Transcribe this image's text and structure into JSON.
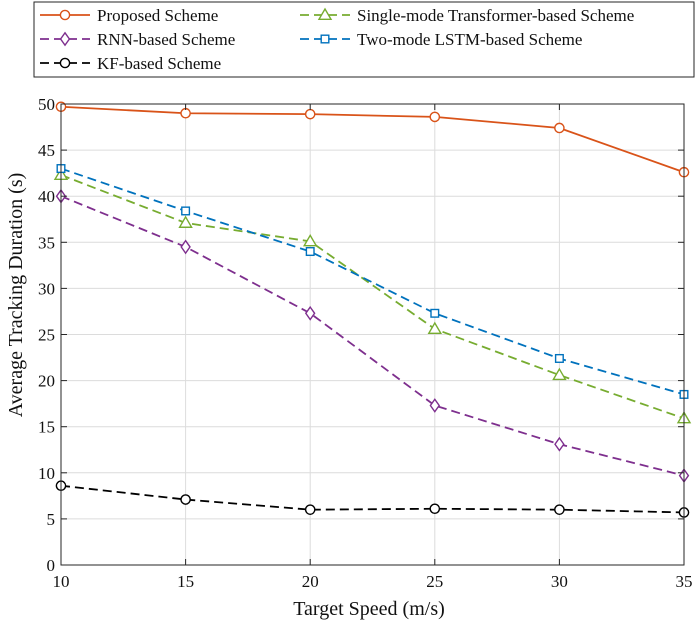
{
  "chart_data": {
    "type": "line",
    "title": "",
    "xlabel": "Target Speed (m/s)",
    "ylabel": "Average Tracking Duration (s)",
    "x": [
      10,
      15,
      20,
      25,
      30,
      35
    ],
    "xlim": [
      10,
      35
    ],
    "ylim": [
      0,
      50
    ],
    "xticks": [
      10,
      15,
      20,
      25,
      30,
      35
    ],
    "yticks": [
      0,
      5,
      10,
      15,
      20,
      25,
      30,
      35,
      40,
      45,
      50
    ],
    "grid": true,
    "legend_position": "top",
    "series": [
      {
        "name": "Proposed Scheme",
        "values": [
          49.7,
          49.0,
          48.9,
          48.6,
          47.4,
          42.6
        ],
        "color": "#D95319",
        "marker": "circle",
        "dash": "solid"
      },
      {
        "name": "Single-mode Transformer-based Scheme",
        "values": [
          42.3,
          37.1,
          35.1,
          25.6,
          20.6,
          15.9
        ],
        "color": "#77AC30",
        "marker": "triangle",
        "dash": "dashed"
      },
      {
        "name": "RNN-based Scheme",
        "values": [
          40.0,
          34.5,
          27.3,
          17.3,
          13.1,
          9.7
        ],
        "color": "#7E2F8E",
        "marker": "diamond",
        "dash": "dashed"
      },
      {
        "name": "Two-mode LSTM-based Scheme",
        "values": [
          43.0,
          38.4,
          34.0,
          27.3,
          22.4,
          18.5
        ],
        "color": "#0072BD",
        "marker": "square",
        "dash": "dashed"
      },
      {
        "name": "KF-based Scheme",
        "values": [
          8.6,
          7.1,
          6.0,
          6.1,
          6.0,
          5.7
        ],
        "color": "#000000",
        "marker": "circle",
        "dash": "dashed"
      }
    ]
  }
}
